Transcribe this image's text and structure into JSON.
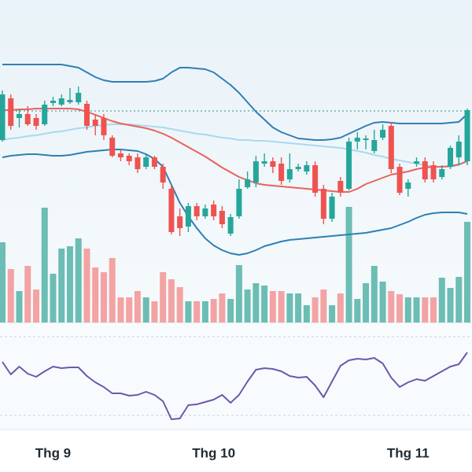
{
  "chart_data": {
    "type": "candlestick",
    "categories": [
      null,
      null,
      null,
      null,
      null,
      null,
      "Thg 9",
      null,
      null,
      null,
      null,
      null,
      null,
      null,
      null,
      null,
      null,
      null,
      null,
      null,
      null,
      null,
      null,
      null,
      null,
      "Thg 10",
      null,
      null,
      null,
      null,
      null,
      null,
      null,
      null,
      null,
      null,
      null,
      null,
      null,
      null,
      null,
      null,
      null,
      null,
      null,
      null,
      null,
      null,
      "Thg 11",
      null,
      null,
      null,
      null,
      null,
      null,
      null
    ],
    "open": [
      122,
      175,
      150,
      155,
      150,
      142,
      169,
      167,
      170,
      170,
      168,
      148,
      150,
      125,
      105,
      102,
      100,
      88,
      100,
      88,
      60,
      25,
      12,
      38,
      25,
      40,
      32,
      3,
      25,
      62,
      68,
      92,
      95,
      92,
      72,
      85,
      82,
      90,
      60,
      22,
      70,
      60,
      120,
      122,
      108,
      125,
      140,
      88,
      60,
      92,
      95,
      90,
      75,
      88,
      100,
      95
    ],
    "high": [
      185,
      180,
      160,
      165,
      155,
      172,
      177,
      180,
      188,
      190,
      172,
      155,
      155,
      128,
      110,
      105,
      105,
      103,
      102,
      92,
      65,
      35,
      42,
      42,
      40,
      45,
      38,
      28,
      72,
      82,
      102,
      105,
      100,
      100,
      105,
      92,
      95,
      95,
      65,
      55,
      75,
      125,
      132,
      128,
      135,
      142,
      145,
      92,
      72,
      100,
      100,
      95,
      90,
      115,
      128,
      162
    ],
    "low": [
      120,
      135,
      138,
      140,
      135,
      140,
      165,
      165,
      168,
      167,
      135,
      128,
      122,
      100,
      95,
      90,
      80,
      85,
      85,
      60,
      2,
      0,
      5,
      20,
      22,
      20,
      10,
      0,
      22,
      60,
      62,
      88,
      80,
      65,
      68,
      82,
      78,
      50,
      15,
      18,
      50,
      58,
      110,
      110,
      105,
      122,
      80,
      52,
      50,
      88,
      68,
      68,
      72,
      85,
      90,
      90
    ],
    "close": [
      180,
      140,
      155,
      142,
      140,
      167,
      172,
      175,
      173,
      182,
      140,
      140,
      128,
      102,
      100,
      95,
      85,
      100,
      88,
      68,
      5,
      10,
      38,
      25,
      35,
      25,
      15,
      24,
      60,
      72,
      95,
      95,
      88,
      70,
      85,
      88,
      90,
      55,
      22,
      50,
      55,
      120,
      125,
      124,
      122,
      135,
      85,
      55,
      68,
      95,
      72,
      72,
      85,
      112,
      120,
      160
    ],
    "ylim": [
      -50,
      300
    ],
    "upper_band": [
      218,
      218,
      218,
      218,
      218,
      218,
      218,
      218,
      216,
      214,
      208,
      202,
      198,
      196,
      196,
      196,
      196,
      196,
      197,
      200,
      208,
      214,
      214,
      213,
      212,
      208,
      200,
      192,
      182,
      170,
      158,
      148,
      138,
      132,
      128,
      124,
      123,
      122,
      122,
      123,
      125,
      130,
      135,
      140,
      144,
      145,
      144,
      143,
      143,
      143,
      143,
      143,
      143,
      144,
      145,
      155
    ],
    "middle_band": [
      160,
      160,
      161,
      161,
      162,
      162,
      162,
      162,
      162,
      161,
      158,
      154,
      150,
      146,
      143,
      141,
      139,
      137,
      134,
      130,
      125,
      119,
      113,
      107,
      101,
      94,
      87,
      81,
      75,
      71,
      67,
      65,
      64,
      63,
      62,
      61,
      60,
      59,
      58,
      57,
      56,
      56,
      60,
      66,
      70,
      74,
      78,
      80,
      82,
      85,
      87,
      88,
      88,
      89,
      91,
      95
    ],
    "lower_band": [
      100,
      102,
      103,
      104,
      104,
      103,
      102,
      102,
      103,
      105,
      107,
      108,
      109,
      110,
      110,
      109,
      108,
      104,
      98,
      88,
      65,
      42,
      25,
      10,
      -3,
      -12,
      -18,
      -22,
      -24,
      -22,
      -18,
      -13,
      -10,
      -7,
      -5,
      -4,
      -3,
      -2,
      -1,
      0,
      1,
      2,
      3,
      4,
      6,
      8,
      10,
      14,
      18,
      23,
      27,
      29,
      30,
      30,
      30,
      28
    ],
    "long_ma": [
      122,
      124,
      125,
      127,
      128,
      130,
      132,
      133,
      135,
      137,
      138,
      140,
      141,
      142,
      142,
      142,
      141,
      140,
      139,
      138,
      136,
      134,
      132,
      130,
      129,
      127,
      125,
      124,
      122,
      122,
      121,
      121,
      120,
      119,
      118,
      117,
      116,
      115,
      114,
      113,
      112,
      110,
      108,
      106,
      103,
      101,
      98,
      96,
      94,
      92,
      90,
      88,
      88,
      88,
      90,
      95
    ],
    "reference_line": 159,
    "volume": [
      102,
      68,
      40,
      72,
      42,
      146,
      62,
      94,
      97,
      107,
      94,
      70,
      64,
      82,
      32,
      32,
      40,
      32,
      27,
      64,
      55,
      45,
      27,
      27,
      27,
      30,
      37,
      30,
      73,
      42,
      50,
      47,
      40,
      40,
      37,
      37,
      22,
      32,
      42,
      22,
      37,
      147,
      30,
      50,
      72,
      52,
      40,
      36,
      32,
      32,
      32,
      32,
      57,
      44,
      58,
      128
    ],
    "volume_ylim": [
      0,
      150
    ],
    "rsi": [
      57.2,
      50.8,
      54.8,
      51.2,
      49.6,
      52.4,
      54.8,
      54,
      54.4,
      54.4,
      50,
      46.8,
      44.4,
      41.2,
      41.2,
      40,
      40.4,
      42,
      40.4,
      37.2,
      28,
      28.4,
      35.2,
      35.6,
      36.8,
      38,
      40.4,
      36.4,
      40.4,
      47.2,
      53.2,
      54,
      53.6,
      52.4,
      50,
      49.2,
      49.6,
      45.2,
      39.2,
      47.2,
      55.2,
      58,
      58.8,
      58.4,
      59.2,
      56.4,
      49.2,
      44.4,
      46.8,
      48.4,
      47.6,
      50,
      52.4,
      54.8,
      56,
      62
    ],
    "rsi_ylim": [
      23,
      73
    ],
    "rsi_yticks": [
      30,
      70
    ],
    "up_color": "#26a69a",
    "down_color": "#ef5350",
    "volume_up_color": "#6cbdb4",
    "volume_down_color": "#f3a3a3",
    "band_color": "#2f7fb6",
    "middle_color": "#e9625b",
    "long_ma_color": "#a9d9ef",
    "rsi_color": "#6b58ad"
  }
}
